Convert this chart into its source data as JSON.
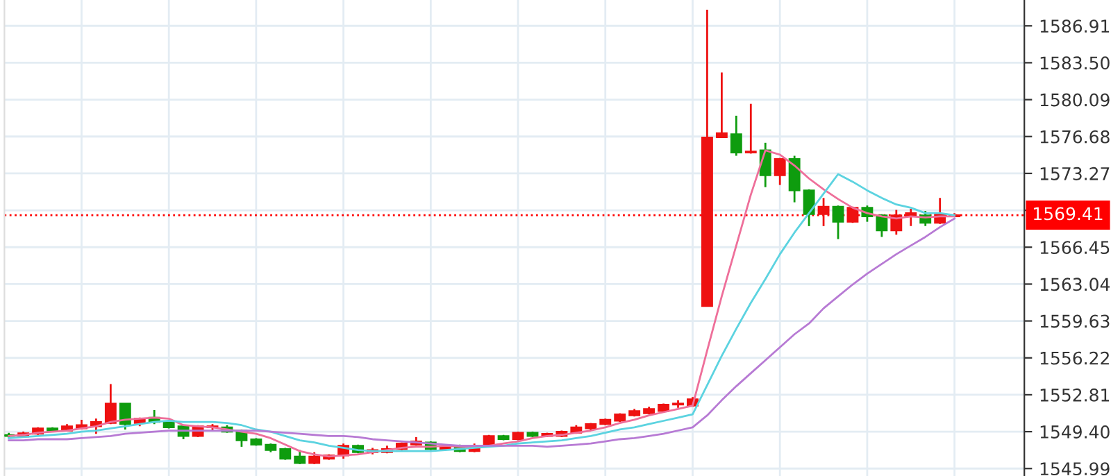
{
  "chart_data": {
    "type": "candlestick",
    "categories": [
      null,
      null,
      null,
      null,
      null,
      null,
      null,
      null,
      null,
      null,
      null,
      null,
      null,
      null,
      null,
      null,
      null,
      null,
      null,
      null,
      null,
      null,
      null,
      null,
      null,
      null,
      null,
      null,
      null,
      null,
      null,
      null,
      null,
      null,
      null,
      null,
      null,
      null,
      null,
      null,
      null,
      null,
      null,
      null,
      null,
      null,
      null,
      null,
      null,
      null,
      null,
      null,
      null,
      null,
      null,
      null,
      null,
      null,
      null,
      null,
      null,
      null,
      null,
      null,
      null,
      null
    ],
    "ohlc": [
      [
        1549.0,
        1549.3,
        1548.8,
        1549.1
      ],
      [
        1548.95,
        1549.4,
        1548.9,
        1549.25
      ],
      [
        1549.2,
        1549.8,
        1549.1,
        1549.7
      ],
      [
        1549.7,
        1549.8,
        1549.4,
        1549.5
      ],
      [
        1549.5,
        1550.1,
        1549.4,
        1549.9
      ],
      [
        1549.7,
        1550.5,
        1549.6,
        1550.0
      ],
      [
        1549.9,
        1550.6,
        1549.2,
        1550.3
      ],
      [
        1550.2,
        1553.8,
        1550.1,
        1552.0
      ],
      [
        1552.0,
        1552.0,
        1549.6,
        1550.1
      ],
      [
        1550.2,
        1550.7,
        1549.9,
        1550.6
      ],
      [
        1550.7,
        1551.4,
        1550.1,
        1550.3
      ],
      [
        1550.3,
        1550.5,
        1549.7,
        1549.8
      ],
      [
        1549.9,
        1550.0,
        1548.7,
        1549.0
      ],
      [
        1549.0,
        1550.0,
        1548.9,
        1549.9
      ],
      [
        1549.8,
        1550.1,
        1549.5,
        1549.9
      ],
      [
        1549.8,
        1550.0,
        1549.3,
        1549.4
      ],
      [
        1549.5,
        1549.6,
        1548.0,
        1548.6
      ],
      [
        1548.7,
        1548.8,
        1548.1,
        1548.2
      ],
      [
        1548.2,
        1548.3,
        1547.5,
        1547.7
      ],
      [
        1547.8,
        1547.9,
        1546.8,
        1546.9
      ],
      [
        1547.1,
        1547.7,
        1546.4,
        1546.5
      ],
      [
        1546.5,
        1547.5,
        1546.4,
        1547.1
      ],
      [
        1546.9,
        1547.3,
        1546.8,
        1547.2
      ],
      [
        1547.2,
        1548.3,
        1546.9,
        1548.1
      ],
      [
        1548.1,
        1548.2,
        1547.4,
        1547.5
      ],
      [
        1547.5,
        1547.9,
        1547.3,
        1547.7
      ],
      [
        1547.5,
        1548.1,
        1547.4,
        1547.8
      ],
      [
        1547.8,
        1548.4,
        1547.7,
        1548.3
      ],
      [
        1548.2,
        1548.9,
        1548.1,
        1548.5
      ],
      [
        1548.4,
        1548.5,
        1547.7,
        1547.8
      ],
      [
        1547.8,
        1548.1,
        1547.7,
        1548.0
      ],
      [
        1548.1,
        1548.2,
        1547.5,
        1547.6
      ],
      [
        1547.6,
        1548.3,
        1547.5,
        1548.1
      ],
      [
        1548.2,
        1549.1,
        1548.1,
        1549.0
      ],
      [
        1549.0,
        1549.1,
        1548.6,
        1548.7
      ],
      [
        1548.7,
        1549.4,
        1548.6,
        1549.3
      ],
      [
        1549.3,
        1549.4,
        1548.9,
        1549.0
      ],
      [
        1549.0,
        1549.3,
        1548.9,
        1549.2
      ],
      [
        1549.0,
        1549.5,
        1548.9,
        1549.4
      ],
      [
        1549.3,
        1550.0,
        1549.2,
        1549.8
      ],
      [
        1549.7,
        1550.2,
        1549.5,
        1550.1
      ],
      [
        1550.1,
        1550.6,
        1550.0,
        1550.5
      ],
      [
        1550.4,
        1551.1,
        1550.3,
        1551.0
      ],
      [
        1550.9,
        1551.5,
        1550.8,
        1551.3
      ],
      [
        1551.1,
        1551.7,
        1551.0,
        1551.5
      ],
      [
        1551.3,
        1552.0,
        1551.2,
        1551.9
      ],
      [
        1551.9,
        1552.3,
        1551.6,
        1552.0
      ],
      [
        1551.8,
        1552.6,
        1551.7,
        1552.4
      ],
      [
        1561.0,
        1588.4,
        1561.0,
        1576.6
      ],
      [
        1576.6,
        1582.6,
        1576.6,
        1577.0
      ],
      [
        1576.9,
        1578.6,
        1574.9,
        1575.2
      ],
      [
        1575.2,
        1579.7,
        1575.1,
        1575.3
      ],
      [
        1575.4,
        1576.1,
        1572.0,
        1573.1
      ],
      [
        1573.1,
        1574.7,
        1572.2,
        1574.6
      ],
      [
        1574.6,
        1574.9,
        1570.6,
        1571.7
      ],
      [
        1571.7,
        1571.8,
        1568.4,
        1569.5
      ],
      [
        1569.5,
        1571.0,
        1568.4,
        1570.2
      ],
      [
        1570.2,
        1570.3,
        1567.2,
        1568.8
      ],
      [
        1568.8,
        1570.2,
        1568.7,
        1570.1
      ],
      [
        1570.1,
        1570.3,
        1568.8,
        1569.3
      ],
      [
        1569.4,
        1569.5,
        1567.4,
        1568.0
      ],
      [
        1568.0,
        1569.9,
        1567.6,
        1569.4
      ],
      [
        1569.3,
        1570.0,
        1568.4,
        1569.6
      ],
      [
        1569.4,
        1569.8,
        1568.4,
        1568.7
      ],
      [
        1568.7,
        1571.0,
        1568.6,
        1569.5
      ],
      [
        1569.3,
        1569.6,
        1569.3,
        1569.41
      ]
    ],
    "colors": [
      "#0e9c0e",
      "#ee1111",
      "#ee1111",
      "#0e9c0e",
      "#ee1111",
      "#ee1111",
      "#ee1111",
      "#ee1111",
      "#0e9c0e",
      "#ee1111",
      "#0e9c0e",
      "#0e9c0e",
      "#0e9c0e",
      "#ee1111",
      "#ee1111",
      "#0e9c0e",
      "#0e9c0e",
      "#0e9c0e",
      "#0e9c0e",
      "#0e9c0e",
      "#0e9c0e",
      "#ee1111",
      "#ee1111",
      "#ee1111",
      "#0e9c0e",
      "#ee1111",
      "#ee1111",
      "#ee1111",
      "#ee1111",
      "#0e9c0e",
      "#ee1111",
      "#0e9c0e",
      "#ee1111",
      "#ee1111",
      "#0e9c0e",
      "#ee1111",
      "#0e9c0e",
      "#ee1111",
      "#ee1111",
      "#ee1111",
      "#ee1111",
      "#ee1111",
      "#ee1111",
      "#ee1111",
      "#ee1111",
      "#ee1111",
      "#ee1111",
      "#ee1111",
      "#ee1111",
      "#ee1111",
      "#0e9c0e",
      "#ee1111",
      "#0e9c0e",
      "#ee1111",
      "#0e9c0e",
      "#0e9c0e",
      "#ee1111",
      "#0e9c0e",
      "#ee1111",
      "#0e9c0e",
      "#0e9c0e",
      "#ee1111",
      "#ee1111",
      "#0e9c0e",
      "#ee1111",
      "#ee1111"
    ],
    "series": [
      {
        "type": "line",
        "color": "#ee6f9a",
        "values": [
          1549.0,
          1549.1,
          1549.3,
          1549.4,
          1549.5,
          1549.7,
          1549.9,
          1550.3,
          1550.5,
          1550.6,
          1550.7,
          1550.6,
          1550.0,
          1549.9,
          1549.8,
          1549.6,
          1549.4,
          1549.2,
          1548.8,
          1548.2,
          1547.6,
          1547.3,
          1547.1,
          1547.2,
          1547.3,
          1547.5,
          1547.7,
          1547.9,
          1548.0,
          1548.0,
          1548.1,
          1548.0,
          1548.0,
          1548.1,
          1548.3,
          1548.5,
          1548.8,
          1549.0,
          1549.1,
          1549.3,
          1549.5,
          1549.8,
          1550.2,
          1550.5,
          1550.9,
          1551.2,
          1551.5,
          1551.8,
          1556.9,
          1561.9,
          1566.6,
          1571.3,
          1575.4,
          1575.0,
          1574.0,
          1572.8,
          1571.8,
          1570.9,
          1570.1,
          1569.6,
          1569.3,
          1569.1,
          1569.3,
          1569.2,
          1569.3,
          1569.3
        ]
      },
      {
        "type": "line",
        "color": "#5cd3e0",
        "values": [
          1548.8,
          1548.9,
          1549.0,
          1549.1,
          1549.2,
          1549.4,
          1549.5,
          1549.7,
          1549.9,
          1550.1,
          1550.3,
          1550.4,
          1550.3,
          1550.3,
          1550.3,
          1550.2,
          1550.0,
          1549.6,
          1549.4,
          1549.0,
          1548.6,
          1548.4,
          1548.1,
          1547.9,
          1547.7,
          1547.6,
          1547.6,
          1547.6,
          1547.6,
          1547.6,
          1547.7,
          1547.8,
          1547.9,
          1548.0,
          1548.1,
          1548.3,
          1548.4,
          1548.5,
          1548.6,
          1548.8,
          1549.0,
          1549.3,
          1549.6,
          1549.8,
          1550.1,
          1550.4,
          1550.7,
          1551.0,
          1553.7,
          1556.4,
          1558.9,
          1561.3,
          1563.5,
          1565.8,
          1567.8,
          1569.6,
          1571.4,
          1573.2,
          1572.5,
          1571.7,
          1571.0,
          1570.4,
          1570.1,
          1569.6,
          1569.6,
          1569.4
        ]
      },
      {
        "type": "line",
        "color": "#b77ad4",
        "values": [
          1548.6,
          1548.6,
          1548.7,
          1548.7,
          1548.7,
          1548.8,
          1548.9,
          1549.0,
          1549.2,
          1549.3,
          1549.4,
          1549.5,
          1549.5,
          1549.5,
          1549.5,
          1549.5,
          1549.5,
          1549.5,
          1549.4,
          1549.3,
          1549.2,
          1549.1,
          1549.0,
          1549.0,
          1548.9,
          1548.7,
          1548.6,
          1548.5,
          1548.4,
          1548.3,
          1548.2,
          1548.1,
          1548.1,
          1548.1,
          1548.1,
          1548.1,
          1548.1,
          1548.0,
          1548.1,
          1548.2,
          1548.3,
          1548.5,
          1548.7,
          1548.8,
          1549.0,
          1549.2,
          1549.5,
          1549.8,
          1550.9,
          1552.3,
          1553.6,
          1554.8,
          1556.0,
          1557.2,
          1558.4,
          1559.4,
          1560.8,
          1561.9,
          1563.0,
          1564.0,
          1564.9,
          1565.8,
          1566.6,
          1567.4,
          1568.3,
          1569.1
        ]
      }
    ],
    "ylim": [
      1545.3,
      1589.3
    ],
    "yticks": [
      1545.99,
      {
        "value": 1549.4,
        "label": "1549.40"
      },
      1552.81,
      1556.22,
      1559.63,
      1563.04,
      1566.45,
      {
        "value": 1569.86,
        "label": null
      },
      1573.27,
      1576.68,
      1580.09,
      {
        "value": 1583.5,
        "label": "1583.50"
      },
      1586.91
    ],
    "ref_lines": [
      {
        "axis": "y",
        "value": 1569.41,
        "label": "1569.41",
        "color": "#ff0000",
        "line_style": "dotted"
      }
    ],
    "grid": true,
    "tick_labels": "y"
  }
}
